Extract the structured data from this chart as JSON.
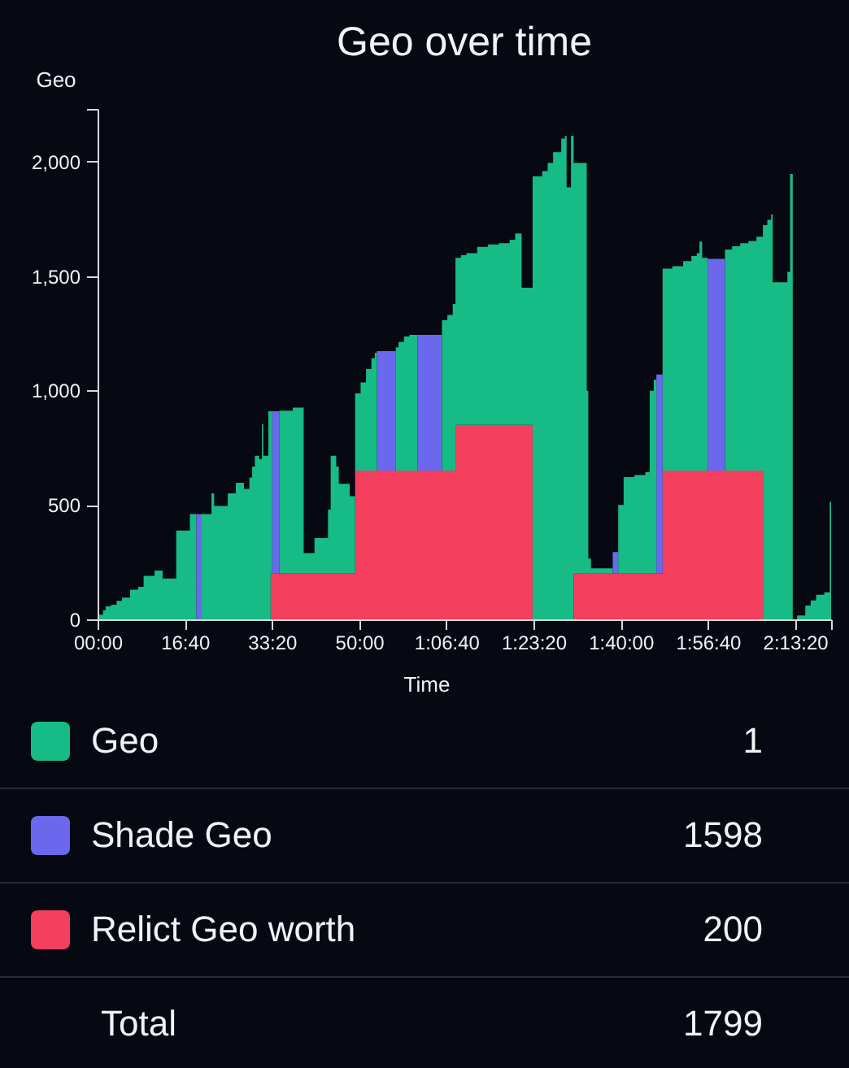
{
  "chart_data": {
    "type": "area",
    "title": "Geo over time",
    "xlabel": "Time",
    "ylabel": "Geo",
    "stacked": true,
    "legend": "bottom",
    "x": [
      0,
      19,
      62,
      93,
      155,
      218,
      280,
      373,
      466,
      528,
      653,
      746,
      902,
      1058,
      1132,
      1194,
      1306,
      1337,
      1493,
      1586,
      1679,
      1741,
      1773,
      1804,
      1853,
      1885,
      1900,
      1959,
      1985,
      2003,
      2084,
      2239,
      2364,
      2488,
      2643,
      2674,
      2737,
      2767,
      2892,
      2954,
      3017,
      3079,
      3141,
      3180,
      3204,
      3421,
      3452,
      3514,
      3577,
      3670,
      3950,
      4012,
      4074,
      4105,
      4168,
      4230,
      4354,
      4479,
      4603,
      4727,
      4790,
      4864,
      4990,
      5100,
      5163,
      5225,
      5318,
      5360,
      5380,
      5430,
      5461,
      5611,
      5629,
      5660,
      5909,
      5972,
      6034,
      6158,
      6283,
      6333,
      6380,
      6410,
      6481,
      6593,
      6717,
      6811,
      6873,
      6904,
      6935,
      6997,
      7197,
      7278,
      7371,
      7465,
      7558,
      7632,
      7682,
      7726,
      7744,
      7912,
      7943,
      7974,
      8024,
      8118,
      8180,
      8242,
      8336,
      8398,
      8414
    ],
    "xlim": [
      0,
      8414
    ],
    "ylim": [
      0,
      2230
    ],
    "xticks": [
      {
        "value": 0,
        "label": "00:00"
      },
      {
        "value": 1000,
        "label": "16:40"
      },
      {
        "value": 2000,
        "label": "33:20"
      },
      {
        "value": 3000,
        "label": "50:00"
      },
      {
        "value": 4000,
        "label": "1:06:40"
      },
      {
        "value": 5000,
        "label": "1:23:20"
      },
      {
        "value": 6000,
        "label": "1:40:00"
      },
      {
        "value": 7000,
        "label": "1:56:40"
      },
      {
        "value": 8000,
        "label": "2:13:20"
      },
      {
        "value": 8414,
        "label": null
      }
    ],
    "yticks": [
      0,
      500,
      {
        "value": 1000,
        "label": "1,000"
      },
      {
        "value": 1500,
        "label": "1,500"
      },
      {
        "value": 2000,
        "label": "2,000"
      },
      {
        "value": 2230,
        "label": null
      }
    ],
    "series": [
      {
        "name": "Relict Geo worth",
        "color": "#f43f5e",
        "values": [
          0,
          0,
          0,
          0,
          0,
          0,
          0,
          0,
          0,
          0,
          0,
          0,
          0,
          0,
          0,
          0,
          0,
          0,
          0,
          0,
          0,
          0,
          0,
          0,
          0,
          0,
          0,
          0,
          200,
          200,
          200,
          200,
          200,
          200,
          200,
          200,
          200,
          200,
          200,
          650,
          650,
          650,
          650,
          650,
          650,
          650,
          650,
          650,
          650,
          650,
          650,
          650,
          650,
          850,
          850,
          850,
          850,
          850,
          850,
          850,
          850,
          850,
          0,
          0,
          0,
          0,
          0,
          0,
          0,
          0,
          200,
          200,
          200,
          200,
          200,
          200,
          200,
          200,
          200,
          200,
          200,
          200,
          650,
          650,
          650,
          650,
          650,
          650,
          650,
          650,
          650,
          650,
          650,
          650,
          650,
          0,
          0,
          0,
          0,
          0,
          0,
          0,
          0,
          0,
          0,
          0,
          0,
          0,
          0
        ]
      },
      {
        "name": "Shade Geo",
        "color": "#6b68ee",
        "values": [
          0,
          0,
          0,
          0,
          0,
          0,
          0,
          0,
          0,
          0,
          0,
          0,
          0,
          0,
          460,
          0,
          0,
          0,
          0,
          0,
          0,
          0,
          0,
          0,
          0,
          0,
          0,
          0,
          0,
          709,
          0,
          0,
          0,
          0,
          0,
          0,
          0,
          0,
          0,
          0,
          0,
          0,
          0,
          0,
          522,
          0,
          0,
          0,
          0,
          593,
          0,
          0,
          0,
          0,
          0,
          0,
          0,
          0,
          0,
          0,
          0,
          0,
          0,
          0,
          0,
          0,
          0,
          0,
          0,
          0,
          0,
          0,
          0,
          0,
          94,
          0,
          0,
          0,
          0,
          0,
          0,
          870,
          0,
          0,
          0,
          0,
          0,
          0,
          0,
          925,
          0,
          0,
          0,
          0,
          0,
          0,
          0,
          0,
          0,
          0,
          0,
          0,
          0,
          0,
          0,
          0,
          0,
          0,
          0
        ]
      },
      {
        "name": "Geo",
        "color": "#17bb86",
        "values": [
          0,
          20,
          40,
          57,
          64,
          81,
          95,
          130,
          142,
          190,
          213,
          178,
          388,
          460,
          0,
          460,
          550,
          495,
          550,
          597,
          570,
          620,
          668,
          715,
          700,
          852,
          715,
          909,
          709,
          0,
          712,
          725,
          89,
          155,
          279,
          515,
          468,
          392,
          338,
          337,
          385,
          444,
          491,
          515,
          0,
          539,
          562,
          586,
          593,
          0,
          657,
          680,
          728,
          729,
          741,
          750,
          777,
          788,
          793,
          808,
          836,
          599,
          1935,
          1958,
          1994,
          2041,
          2100,
          2112,
          1887,
          2112,
          1794,
          799,
          65,
          23,
          0,
          300,
          421,
          430,
          443,
          799,
          847,
          0,
          882,
          893,
          915,
          937,
          950,
          1000,
          929,
          0,
          966,
          980,
          993,
          1003,
          1022,
          1722,
          1745,
          1769,
          1473,
          1518,
          1946,
          0,
          17,
          60,
          83,
          107,
          118,
          514,
          514
        ]
      }
    ],
    "annotations": [
      "1",
      "1598",
      "200",
      "Total",
      "1799"
    ]
  }
}
